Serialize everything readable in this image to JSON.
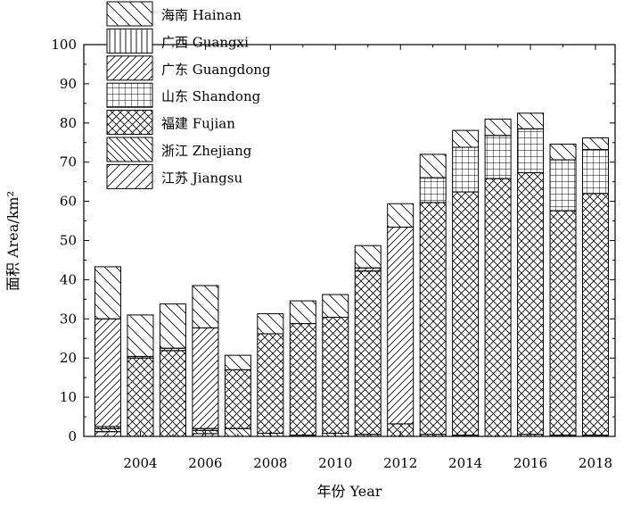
{
  "chart_data": {
    "type": "bar",
    "stacked": true,
    "title": "",
    "xlabel": "年份 Year",
    "ylabel": "面积 Area/km²",
    "ylim": [
      0,
      100
    ],
    "yticks": [
      0,
      10,
      20,
      30,
      40,
      50,
      60,
      70,
      80,
      90,
      100
    ],
    "xtick_labels": [
      "2004",
      "2006",
      "2008",
      "2010",
      "2012",
      "2014",
      "2016",
      "2018"
    ],
    "grid": false,
    "legend_position": "top-left",
    "categories": [
      "2003",
      "2004",
      "2005",
      "2006",
      "2007",
      "2008",
      "2009",
      "2010",
      "2011",
      "2012",
      "2013",
      "2014",
      "2015",
      "2016",
      "2017",
      "2018"
    ],
    "series": [
      {
        "name": "江苏 Jiangsu",
        "pattern": "diag-fwd-sparse",
        "values": [
          1.2,
          0,
          0,
          0.7,
          0,
          0,
          0,
          0,
          0,
          0,
          0,
          0,
          0,
          0,
          0,
          0
        ]
      },
      {
        "name": "浙江 Zhejiang",
        "pattern": "diag-back",
        "values": [
          0.8,
          0,
          0,
          0.8,
          2.0,
          0.8,
          0.3,
          0.8,
          0.5,
          0,
          0.5,
          0.3,
          0,
          0.5,
          0.3,
          0.3
        ]
      },
      {
        "name": "福建 Fujian",
        "pattern": "crosshatch",
        "values": [
          0.5,
          20.0,
          21.9,
          0.5,
          15.0,
          25.4,
          28.5,
          29.6,
          41.7,
          3.2,
          59.2,
          62.1,
          65.8,
          66.8,
          57.3,
          61.7
        ]
      },
      {
        "name": "山东 Shandong",
        "pattern": "grid",
        "values": [
          0,
          0,
          0,
          0,
          0,
          0,
          0,
          0,
          0,
          0,
          6.3,
          11.4,
          11.0,
          11.2,
          13.0,
          11.2
        ]
      },
      {
        "name": "广东 Guangdong",
        "pattern": "diag-fwd",
        "values": [
          27.5,
          0.4,
          0.6,
          25.7,
          0,
          0,
          0,
          0,
          0.8,
          50.2,
          0,
          0,
          0,
          0,
          0,
          0
        ]
      },
      {
        "name": "广西 Guangxi",
        "pattern": "vertical",
        "values": [
          0,
          0,
          0,
          0,
          0,
          0,
          0,
          0,
          0,
          0,
          0,
          0,
          0,
          0,
          0,
          0
        ]
      },
      {
        "name": "海南 Hainan",
        "pattern": "diag-back-wide",
        "values": [
          13.3,
          10.6,
          11.3,
          10.8,
          3.7,
          5.1,
          5.8,
          5.8,
          5.7,
          6.0,
          6.0,
          4.3,
          4.2,
          4.0,
          4.0,
          3.0
        ]
      }
    ],
    "segment_overrides_note": ""
  }
}
